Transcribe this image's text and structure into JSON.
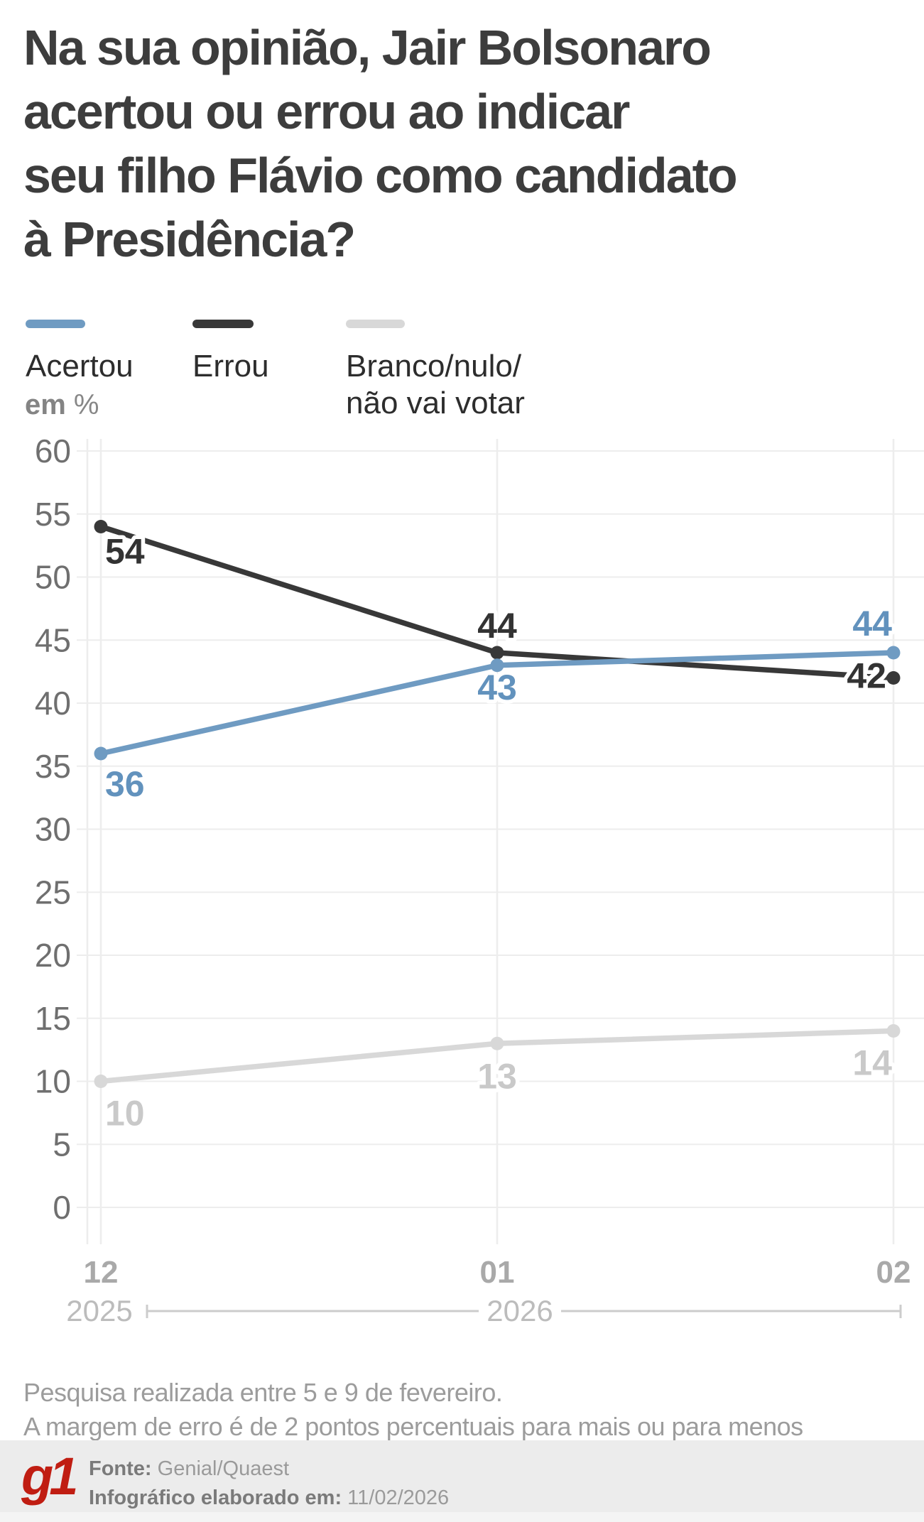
{
  "title": {
    "lines": [
      "Na sua opinião, Jair Bolsonaro",
      "acertou ou errou ao indicar",
      "seu filho Flávio como candidato",
      "à Presidência?"
    ]
  },
  "legend": {
    "items": [
      {
        "label": "Acertou",
        "color": "#6f9bc2"
      },
      {
        "label": "Errou",
        "color": "#383838"
      },
      {
        "label_line1": "Branco/nulo/",
        "label_line2": "não vai votar",
        "color": "#d8d8d8"
      }
    ]
  },
  "unit_label": {
    "bold": "em",
    "rest": " %"
  },
  "chart_data": {
    "type": "line",
    "x": [
      "12/2025",
      "01/2026",
      "02/2026"
    ],
    "x_tick_labels": [
      "12",
      "01",
      "02"
    ],
    "year_labels": [
      "2025",
      "2026"
    ],
    "ylim": [
      0,
      60
    ],
    "ytick_step": 5,
    "grid": true,
    "unit": "%",
    "legend_position": "top",
    "series": [
      {
        "name": "Branco/nulo/não vai votar",
        "values": [
          10,
          13,
          14
        ],
        "color": "#d8d8d8",
        "label_color": "#c9c9c9",
        "label_pos": [
          {
            "dx": 6,
            "dy": 62,
            "anchor": "start"
          },
          {
            "dx": 0,
            "dy": 63,
            "anchor": "middle"
          },
          {
            "dx": -2,
            "dy": 62,
            "anchor": "end"
          }
        ]
      },
      {
        "name": "Errou",
        "values": [
          54,
          44,
          42
        ],
        "color": "#383838",
        "label_color": "#333333",
        "label_pos": [
          {
            "dx": 6,
            "dy": 52,
            "anchor": "start"
          },
          {
            "dx": 0,
            "dy": -21,
            "anchor": "middle"
          },
          {
            "dx": -10,
            "dy": 14,
            "anchor": "end"
          }
        ]
      },
      {
        "name": "Acertou",
        "values": [
          36,
          43,
          44
        ],
        "color": "#6f9bc2",
        "label_color": "#6292bd",
        "label_pos": [
          {
            "dx": 6,
            "dy": 60,
            "anchor": "start"
          },
          {
            "dx": 0,
            "dy": 48,
            "anchor": "middle"
          },
          {
            "dx": -2,
            "dy": -24,
            "anchor": "end"
          }
        ]
      }
    ]
  },
  "notes": {
    "lines": [
      "Pesquisa realizada entre 5 e 9 de fevereiro.",
      "A margem de erro é de 2 pontos percentuais para mais ou para menos"
    ]
  },
  "footer": {
    "logo": "g1",
    "source_label": "Fonte:",
    "source_value": " Genial/Quaest",
    "info_label": "Infográfico elaborado em:",
    "info_value": " 11/02/2026"
  },
  "colors": {
    "title": "#3d3d3d",
    "grid": "#ededed",
    "axis_label": "#6f6f6f",
    "month_label": "#a9a9a9",
    "year_label": "#bcbcbc",
    "timeline": "#cccccc",
    "notes": "#9c9c9c",
    "footer_bar": "#ececec",
    "logo_red": "#c01d12"
  }
}
